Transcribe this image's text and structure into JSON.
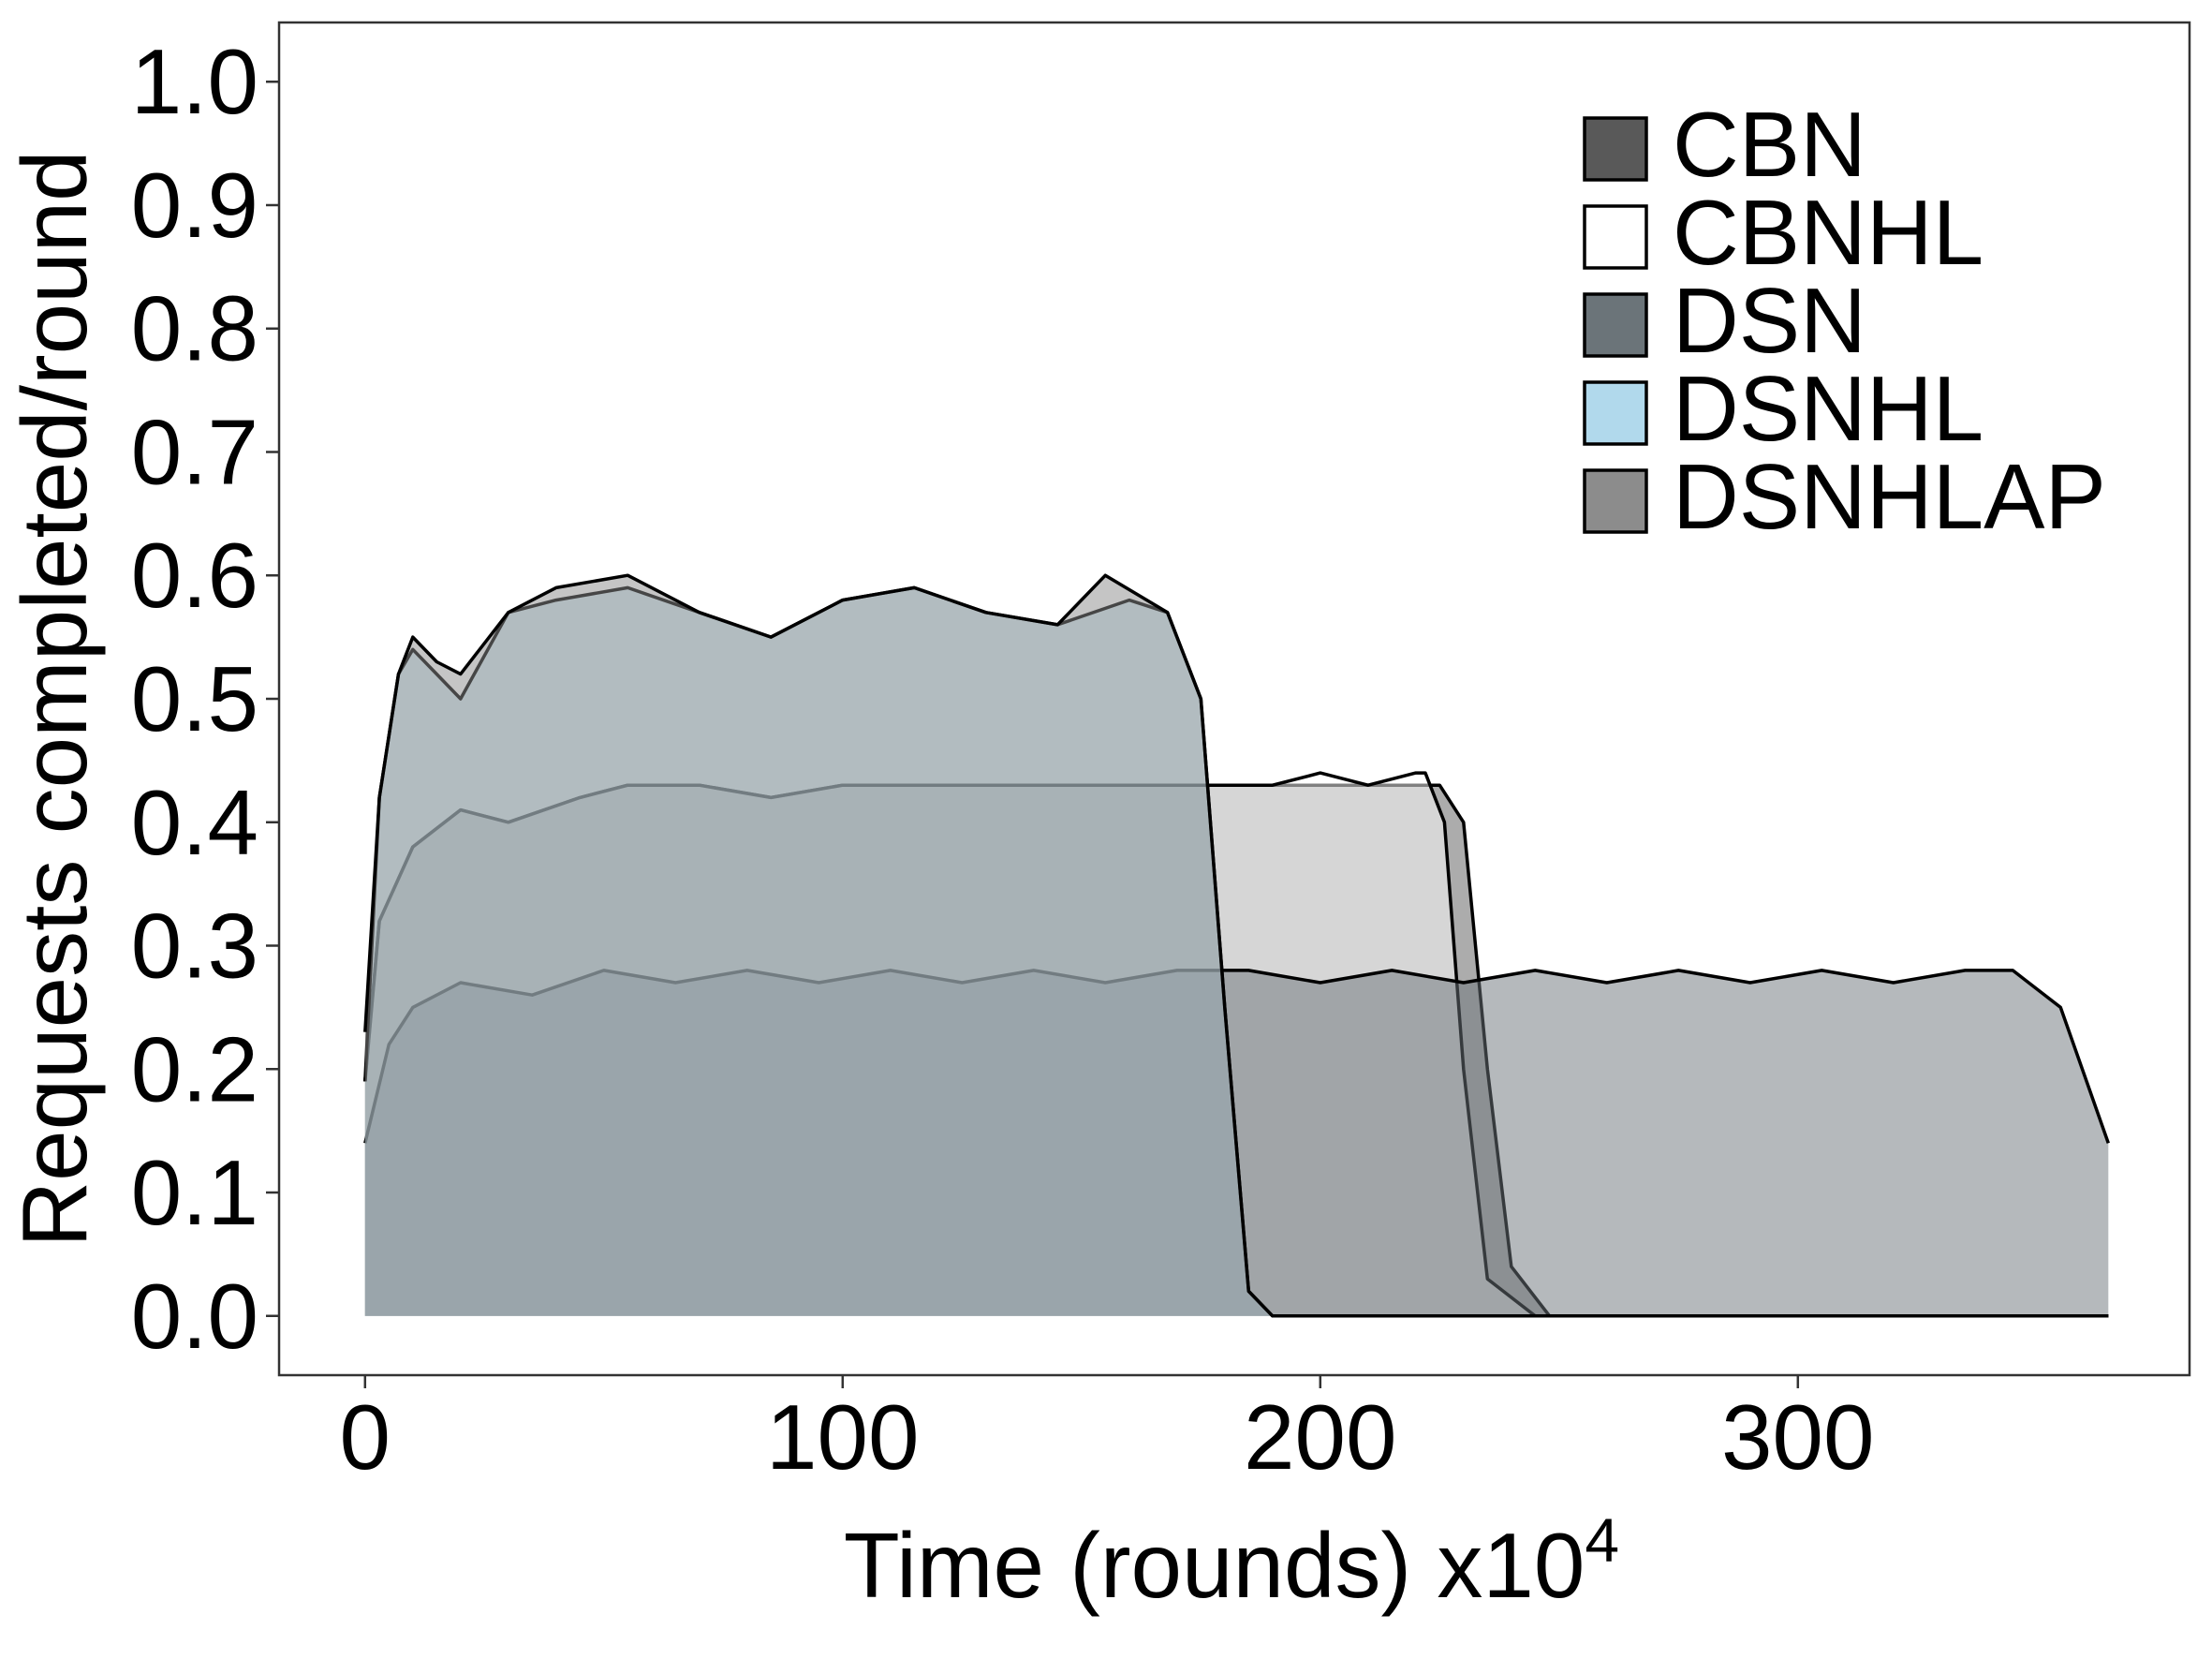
{
  "chart_data": {
    "type": "area",
    "title": "",
    "xlabel": "Time (rounds) x10",
    "xlabel_sup": "4",
    "ylabel": "Requests completed/round",
    "xlim": [
      -18,
      382
    ],
    "ylim": [
      -0.048,
      1.048
    ],
    "xticks": [
      0,
      100,
      200,
      300
    ],
    "xtick_labels": [
      "0",
      "100",
      "200",
      "300"
    ],
    "yticks": [
      0.0,
      0.1,
      0.2,
      0.3,
      0.4,
      0.5,
      0.6,
      0.7,
      0.8,
      0.9,
      1.0
    ],
    "ytick_labels": [
      "0.0",
      "0.1",
      "0.2",
      "0.3",
      "0.4",
      "0.5",
      "0.6",
      "0.7",
      "0.8",
      "0.9",
      "1.0"
    ],
    "grid": false,
    "legend_position": "top-right",
    "series": [
      {
        "name": "CBN",
        "color": "#595959",
        "x": [
          0,
          3,
          10,
          20,
          30,
          45,
          55,
          70,
          85,
          100,
          115,
          130,
          145,
          160,
          170,
          180,
          190,
          200,
          210,
          220,
          225,
          230,
          235,
          240,
          248,
          260,
          300,
          365
        ],
        "y": [
          0.19,
          0.32,
          0.38,
          0.41,
          0.4,
          0.42,
          0.43,
          0.43,
          0.42,
          0.43,
          0.43,
          0.43,
          0.43,
          0.43,
          0.43,
          0.43,
          0.43,
          0.43,
          0.43,
          0.43,
          0.43,
          0.4,
          0.2,
          0.04,
          0.0,
          0.0,
          0.0,
          0.0
        ]
      },
      {
        "name": "CBNHL",
        "color": "#ffffff",
        "x": [
          0,
          3,
          10,
          20,
          30,
          45,
          55,
          70,
          85,
          100,
          115,
          130,
          145,
          160,
          170,
          180,
          190,
          200,
          210,
          220,
          222,
          226,
          230,
          235,
          245,
          260,
          300,
          365
        ],
        "y": [
          0.19,
          0.32,
          0.38,
          0.41,
          0.4,
          0.42,
          0.43,
          0.43,
          0.42,
          0.43,
          0.43,
          0.43,
          0.43,
          0.43,
          0.43,
          0.43,
          0.43,
          0.44,
          0.43,
          0.44,
          0.44,
          0.4,
          0.2,
          0.03,
          0.0,
          0.0,
          0.0,
          0.0
        ]
      },
      {
        "name": "DSN",
        "color": "#6b7479",
        "x": [
          0,
          5,
          10,
          20,
          35,
          50,
          65,
          80,
          95,
          110,
          125,
          140,
          155,
          170,
          185,
          200,
          215,
          230,
          245,
          260,
          275,
          290,
          305,
          320,
          335,
          345,
          355,
          365
        ],
        "y": [
          0.14,
          0.22,
          0.25,
          0.27,
          0.26,
          0.28,
          0.27,
          0.28,
          0.27,
          0.28,
          0.27,
          0.28,
          0.27,
          0.28,
          0.28,
          0.27,
          0.28,
          0.27,
          0.28,
          0.27,
          0.28,
          0.27,
          0.28,
          0.27,
          0.28,
          0.28,
          0.25,
          0.14
        ]
      },
      {
        "name": "DSNHL",
        "color": "#b1d9ec",
        "x": [
          0,
          3,
          7,
          10,
          15,
          20,
          30,
          40,
          55,
          70,
          85,
          100,
          115,
          130,
          145,
          160,
          168,
          175,
          180,
          185,
          190,
          200,
          260,
          365
        ],
        "y": [
          0.19,
          0.42,
          0.52,
          0.54,
          0.52,
          0.5,
          0.57,
          0.58,
          0.59,
          0.57,
          0.55,
          0.58,
          0.59,
          0.57,
          0.56,
          0.58,
          0.57,
          0.5,
          0.25,
          0.02,
          0.0,
          0.0,
          0.0,
          0.0
        ]
      },
      {
        "name": "DSNHLAP",
        "color": "#8c8c8c",
        "x": [
          0,
          3,
          7,
          10,
          15,
          20,
          30,
          40,
          55,
          70,
          85,
          100,
          115,
          130,
          145,
          155,
          168,
          175,
          180,
          185,
          190,
          200,
          260,
          365
        ],
        "y": [
          0.23,
          0.42,
          0.52,
          0.55,
          0.53,
          0.52,
          0.57,
          0.59,
          0.6,
          0.57,
          0.55,
          0.58,
          0.59,
          0.57,
          0.56,
          0.6,
          0.57,
          0.5,
          0.25,
          0.02,
          0.0,
          0.0,
          0.0,
          0.0
        ]
      }
    ]
  }
}
